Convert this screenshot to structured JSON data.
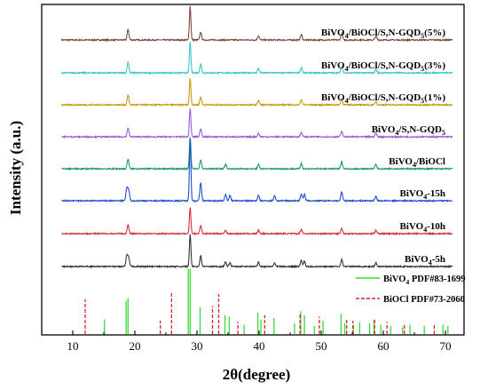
{
  "chart_data": {
    "type": "line",
    "xlabel": "2θ(degree)",
    "ylabel": "Intensity (a.u.)",
    "xlim": [
      5,
      73
    ],
    "xticks": [
      10,
      20,
      30,
      40,
      50,
      60,
      70
    ],
    "grid": false,
    "series": [
      {
        "name": "BiVO₄/BiOCl/S,N-GQD₅(5%)",
        "name_main": "BiVO",
        "name_sub1": "4",
        "name_mid": "/BiOCl/S,N-GQD",
        "name_sub2": "5",
        "name_tail": "(5%)",
        "color": "#7a4a3f",
        "peaks": [
          {
            "x": 18.9,
            "h": 12
          },
          {
            "x": 28.9,
            "h": 38
          },
          {
            "x": 30.6,
            "h": 9
          },
          {
            "x": 39.9,
            "h": 5
          },
          {
            "x": 46.8,
            "h": 6
          },
          {
            "x": 53.3,
            "h": 7
          },
          {
            "x": 58.8,
            "h": 4
          }
        ]
      },
      {
        "name": "BiVO₄/BiOCl/S,N-GQD₅(3%)",
        "name_main": "BiVO",
        "name_sub1": "4",
        "name_mid": "/BiOCl/S,N-GQD",
        "name_sub2": "5",
        "name_tail": "(3%)",
        "color": "#3cc4c8",
        "peaks": [
          {
            "x": 18.9,
            "h": 12
          },
          {
            "x": 28.9,
            "h": 34
          },
          {
            "x": 30.6,
            "h": 10
          },
          {
            "x": 39.9,
            "h": 5
          },
          {
            "x": 46.8,
            "h": 6
          },
          {
            "x": 53.3,
            "h": 7
          },
          {
            "x": 58.8,
            "h": 4
          }
        ]
      },
      {
        "name": "BiVO₄/BiOCl/S,N-GQD₅(1%)",
        "name_main": "BiVO",
        "name_sub1": "4",
        "name_mid": "/BiOCl/S,N-GQD",
        "name_sub2": "5",
        "name_tail": "(1%)",
        "color": "#c99a14",
        "peaks": [
          {
            "x": 18.9,
            "h": 11
          },
          {
            "x": 28.9,
            "h": 30
          },
          {
            "x": 30.6,
            "h": 9
          },
          {
            "x": 39.9,
            "h": 5
          },
          {
            "x": 46.8,
            "h": 6
          },
          {
            "x": 53.3,
            "h": 7
          },
          {
            "x": 58.8,
            "h": 4
          }
        ]
      },
      {
        "name": "BiVO₄/S,N-GQD₅",
        "name_main": "BiVO",
        "name_sub1": "4",
        "name_mid": "/S,N-GQD",
        "name_sub2": "5",
        "name_tail": "",
        "color": "#9b5ad6",
        "peaks": [
          {
            "x": 18.9,
            "h": 10
          },
          {
            "x": 28.9,
            "h": 32
          },
          {
            "x": 30.6,
            "h": 9
          },
          {
            "x": 39.9,
            "h": 4
          },
          {
            "x": 46.8,
            "h": 5
          },
          {
            "x": 53.3,
            "h": 6
          },
          {
            "x": 58.8,
            "h": 4
          }
        ]
      },
      {
        "name": "BiVO₄/BiOCl",
        "name_main": "BiVO",
        "name_sub1": "4",
        "name_mid": "/BiOCl",
        "name_sub2": "",
        "name_tail": "",
        "color": "#1a9a5e",
        "peaks": [
          {
            "x": 18.9,
            "h": 11
          },
          {
            "x": 28.9,
            "h": 36
          },
          {
            "x": 30.6,
            "h": 10
          },
          {
            "x": 34.6,
            "h": 5
          },
          {
            "x": 39.9,
            "h": 5
          },
          {
            "x": 46.8,
            "h": 6
          },
          {
            "x": 53.3,
            "h": 8
          },
          {
            "x": 58.8,
            "h": 5
          }
        ]
      },
      {
        "name": "BiVO₄-15h",
        "name_main": "BiVO",
        "name_sub1": "4",
        "name_mid": "-15h",
        "name_sub2": "",
        "name_tail": "",
        "color": "#1f4fd0",
        "peaks": [
          {
            "x": 18.7,
            "h": 14
          },
          {
            "x": 19.0,
            "h": 12
          },
          {
            "x": 28.9,
            "h": 70
          },
          {
            "x": 30.6,
            "h": 20
          },
          {
            "x": 34.6,
            "h": 7
          },
          {
            "x": 35.3,
            "h": 6
          },
          {
            "x": 39.9,
            "h": 6
          },
          {
            "x": 42.5,
            "h": 6
          },
          {
            "x": 46.8,
            "h": 8
          },
          {
            "x": 47.3,
            "h": 7
          },
          {
            "x": 53.3,
            "h": 10
          },
          {
            "x": 58.8,
            "h": 5
          }
        ]
      },
      {
        "name": "BiVO₄-10h",
        "name_main": "BiVO",
        "name_sub1": "4",
        "name_mid": "-10h",
        "name_sub2": "",
        "name_tail": "",
        "color": "#d62c3a",
        "peaks": [
          {
            "x": 18.9,
            "h": 10
          },
          {
            "x": 28.9,
            "h": 30
          },
          {
            "x": 30.6,
            "h": 9
          },
          {
            "x": 34.6,
            "h": 4
          },
          {
            "x": 39.9,
            "h": 4
          },
          {
            "x": 46.8,
            "h": 5
          },
          {
            "x": 53.3,
            "h": 6
          },
          {
            "x": 58.8,
            "h": 4
          }
        ]
      },
      {
        "name": "BiVO₄-5h",
        "name_main": "BiVO",
        "name_sub1": "4",
        "name_mid": "-5h",
        "name_sub2": "",
        "name_tail": "",
        "color": "#333333",
        "peaks": [
          {
            "x": 18.7,
            "h": 12
          },
          {
            "x": 19.0,
            "h": 10
          },
          {
            "x": 28.9,
            "h": 36
          },
          {
            "x": 30.6,
            "h": 12
          },
          {
            "x": 34.6,
            "h": 5
          },
          {
            "x": 35.3,
            "h": 4
          },
          {
            "x": 39.9,
            "h": 5
          },
          {
            "x": 42.5,
            "h": 4
          },
          {
            "x": 46.8,
            "h": 7
          },
          {
            "x": 47.3,
            "h": 6
          },
          {
            "x": 53.3,
            "h": 8
          },
          {
            "x": 58.8,
            "h": 4
          }
        ]
      }
    ],
    "reference": [
      {
        "name": "BiVO₄ PDF#83-1699",
        "name_main": "BiVO",
        "name_sub1": "4",
        "name_tail": " PDF#83-1699",
        "color": "#33dd33",
        "style": "solid",
        "positions": [
          15.1,
          18.6,
          18.9,
          28.6,
          28.9,
          30.5,
          34.5,
          35.2,
          37.6,
          39.8,
          40.3,
          42.4,
          45.7,
          46.7,
          47.3,
          48.9,
          50.3,
          53.2,
          53.8,
          55.2,
          56.2,
          57.8,
          58.5,
          59.6,
          61.2,
          63.1,
          64.3,
          66.6,
          69.6,
          70.4
        ],
        "heights": [
          0.22,
          0.5,
          0.54,
          0.98,
          0.98,
          0.4,
          0.28,
          0.26,
          0.14,
          0.32,
          0.22,
          0.24,
          0.16,
          0.34,
          0.28,
          0.12,
          0.2,
          0.3,
          0.16,
          0.14,
          0.18,
          0.16,
          0.22,
          0.14,
          0.12,
          0.1,
          0.14,
          0.12,
          0.14,
          0.12
        ]
      },
      {
        "name": "BiOCl PDF#73-2060",
        "name_main": "BiOCl",
        "name_sub1": "",
        "name_tail": " PDF#73-2060",
        "color": "#dd2222",
        "style": "dashed",
        "positions": [
          12.0,
          24.1,
          25.9,
          32.5,
          33.5,
          36.6,
          40.9,
          46.6,
          49.7,
          54.1,
          55.1,
          58.6,
          60.6,
          63.4,
          68.2
        ],
        "heights": [
          0.52,
          0.2,
          0.62,
          0.42,
          0.6,
          0.18,
          0.28,
          0.3,
          0.26,
          0.22,
          0.2,
          0.24,
          0.18,
          0.14,
          0.14
        ]
      }
    ]
  }
}
